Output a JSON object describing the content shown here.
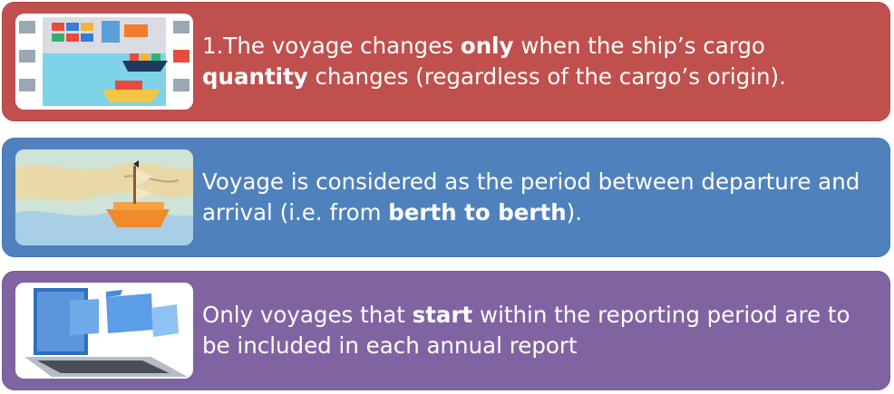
{
  "cards": [
    {
      "image_icon": "port-cargo-illustration",
      "text": {
        "t1": "1.The voyage changes ",
        "b1": "only",
        "t2": " when the ship’s cargo ",
        "b2": "quantity",
        "t3": " changes (regardless of the cargo’s origin)."
      }
    },
    {
      "image_icon": "toy-ship-on-map-photo",
      "text": {
        "t1": "Voyage is considered as the period between departure and arrival (i.e. from ",
        "b1": "berth to berth",
        "t2": ")."
      }
    },
    {
      "image_icon": "folders-from-laptop-illustration",
      "text": {
        "t1": "Only voyages that ",
        "b1": "start",
        "t2": " within the reporting period are to be included in each annual report"
      }
    }
  ],
  "colors": {
    "card1": "#c0504d",
    "card2": "#4f81bd",
    "card3": "#8064a2",
    "text": "#ffffff"
  }
}
